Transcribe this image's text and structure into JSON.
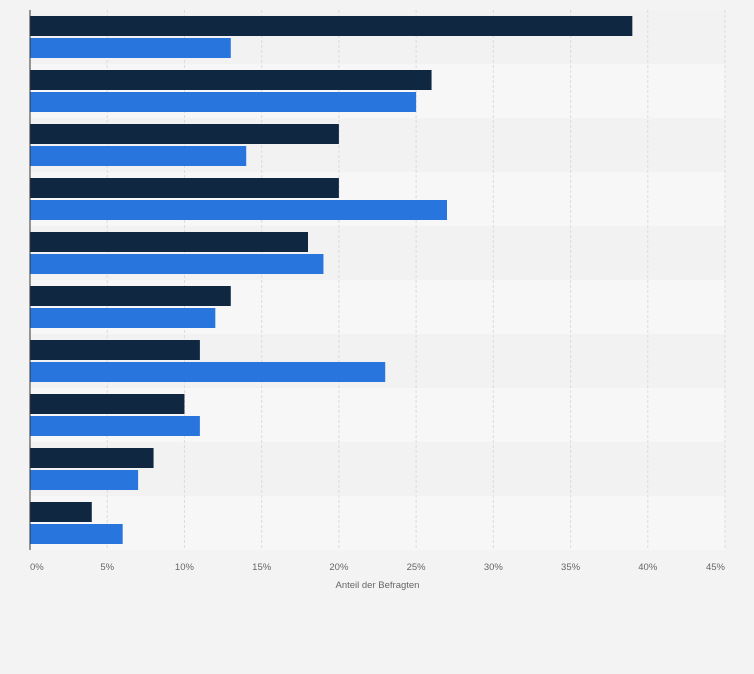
{
  "chart_data": {
    "type": "bar",
    "orientation": "horizontal",
    "categories": [
      "",
      "",
      "",
      "",
      "",
      "",
      "",
      "",
      "",
      ""
    ],
    "series": [
      {
        "values": [
          39,
          26,
          20,
          20,
          18,
          13,
          11,
          10,
          8,
          4
        ]
      },
      {
        "values": [
          13,
          25,
          14,
          27,
          19,
          12,
          23,
          11,
          7,
          6
        ]
      }
    ],
    "xlabel": "Anteil der Befragten",
    "ylabel": "",
    "xlim": [
      0,
      45
    ],
    "xticks": [
      "0%",
      "5%",
      "10%",
      "15%",
      "20%",
      "25%",
      "30%",
      "35%",
      "40%",
      "45%"
    ],
    "grid": true,
    "legend": "none"
  },
  "colors": {
    "series_1": "#0f2741",
    "series_2": "#2876dd",
    "background": "#f3f3f3",
    "band_light": "#f7f7f7",
    "band_dark": "#f2f2f2",
    "grid": "#dcdcdc",
    "axis": "#333333",
    "tick_text": "#666666"
  }
}
